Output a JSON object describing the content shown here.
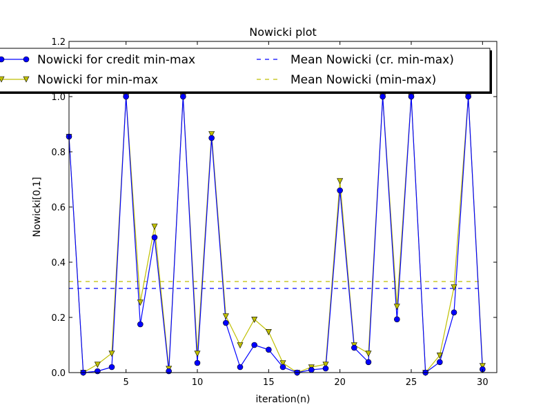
{
  "chart_data": {
    "type": "line",
    "title": "Nowicki plot",
    "xlabel": "iteration(n)",
    "ylabel": "Nowicki[0,1]",
    "xlim": [
      1,
      31
    ],
    "ylim": [
      0,
      1.2
    ],
    "xticks": [
      5,
      10,
      15,
      20,
      25,
      30
    ],
    "yticks": [
      0.0,
      0.2,
      0.4,
      0.6,
      0.8,
      1.0,
      1.2
    ],
    "ytick_labels": [
      "0.0",
      "0.2",
      "0.4",
      "0.6",
      "0.8",
      "1.0",
      "1.2"
    ],
    "grid": false,
    "legend_position": "top",
    "x": [
      1,
      2,
      3,
      4,
      5,
      6,
      7,
      8,
      9,
      10,
      11,
      12,
      13,
      14,
      15,
      16,
      17,
      18,
      19,
      20,
      21,
      22,
      23,
      24,
      25,
      26,
      27,
      28,
      29,
      30
    ],
    "series": [
      {
        "name": "Nowicki for credit min-max",
        "color": "#0000ff",
        "marker": "circle",
        "values": [
          0.855,
          0.0,
          0.005,
          0.02,
          1.0,
          0.175,
          0.49,
          0.005,
          1.0,
          0.035,
          0.85,
          0.18,
          0.02,
          0.1,
          0.083,
          0.02,
          0.0,
          0.01,
          0.015,
          0.66,
          0.09,
          0.038,
          1.0,
          0.193,
          1.0,
          0.0,
          0.038,
          0.218,
          1.0,
          0.012
        ]
      },
      {
        "name": "Nowicki for min-max",
        "color": "#bfbf00",
        "marker": "triangle-down",
        "values": [
          0.855,
          0.0,
          0.03,
          0.07,
          1.0,
          0.255,
          0.53,
          0.015,
          1.0,
          0.07,
          0.865,
          0.205,
          0.1,
          0.193,
          0.148,
          0.035,
          0.0,
          0.02,
          0.03,
          0.695,
          0.1,
          0.07,
          1.0,
          0.24,
          1.0,
          0.0,
          0.063,
          0.31,
          1.0,
          0.025
        ]
      },
      {
        "name": "Mean Nowicki (cr. min-max)",
        "color": "#0000ff",
        "style": "dashed",
        "x_range": [
          1,
          30
        ],
        "value": 0.305
      },
      {
        "name": "Mean Nowicki (min-max)",
        "color": "#bfbf00",
        "style": "dashed",
        "x_range": [
          1,
          30
        ],
        "value": 0.33
      }
    ]
  }
}
